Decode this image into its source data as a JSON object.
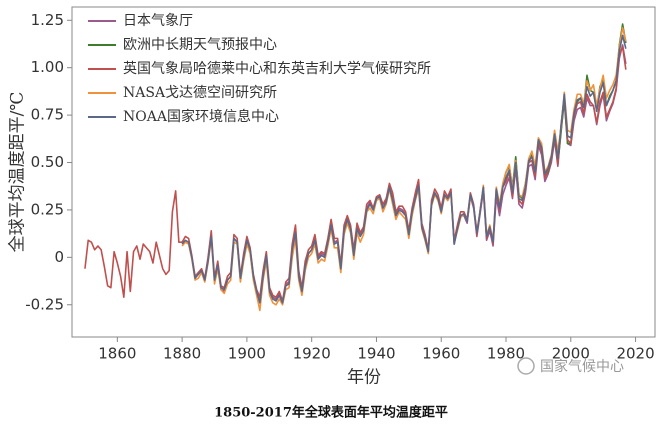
{
  "chart_data": {
    "type": "line",
    "title": "1850-2017年全球表面年平均温度距平",
    "xlabel": "年份",
    "ylabel": "全球平均温度距平/℃",
    "watermark": "国家气候中心",
    "legend": "upper left",
    "grid": false,
    "xlim": [
      1846,
      2026
    ],
    "xticks": [
      1860,
      1880,
      1900,
      1920,
      1940,
      1960,
      1980,
      2000,
      2020
    ],
    "ylim": [
      -0.42,
      1.32
    ],
    "yticks": [
      -0.25,
      0,
      0.25,
      {
        "value": 0.5,
        "label": "0.50"
      },
      0.75,
      {
        "value": 1,
        "label": "1.00"
      },
      1.25
    ],
    "x": [
      1850,
      1851,
      1852,
      1853,
      1854,
      1855,
      1856,
      1857,
      1858,
      1859,
      1860,
      1861,
      1862,
      1863,
      1864,
      1865,
      1866,
      1867,
      1868,
      1869,
      1870,
      1871,
      1872,
      1873,
      1874,
      1875,
      1876,
      1877,
      1878,
      1879,
      1880,
      1881,
      1882,
      1883,
      1884,
      1885,
      1886,
      1887,
      1888,
      1889,
      1890,
      1891,
      1892,
      1893,
      1894,
      1895,
      1896,
      1897,
      1898,
      1899,
      1900,
      1901,
      1902,
      1903,
      1904,
      1905,
      1906,
      1907,
      1908,
      1909,
      1910,
      1911,
      1912,
      1913,
      1914,
      1915,
      1916,
      1917,
      1918,
      1919,
      1920,
      1921,
      1922,
      1923,
      1924,
      1925,
      1926,
      1927,
      1928,
      1929,
      1930,
      1931,
      1932,
      1933,
      1934,
      1935,
      1936,
      1937,
      1938,
      1939,
      1940,
      1941,
      1942,
      1943,
      1944,
      1945,
      1946,
      1947,
      1948,
      1949,
      1950,
      1951,
      1952,
      1953,
      1954,
      1955,
      1956,
      1957,
      1958,
      1959,
      1960,
      1961,
      1962,
      1963,
      1964,
      1965,
      1966,
      1967,
      1968,
      1969,
      1970,
      1971,
      1972,
      1973,
      1974,
      1975,
      1976,
      1977,
      1978,
      1979,
      1980,
      1981,
      1982,
      1983,
      1984,
      1985,
      1986,
      1987,
      1988,
      1989,
      1990,
      1991,
      1992,
      1993,
      1994,
      1995,
      1996,
      1997,
      1998,
      1999,
      2000,
      2001,
      2002,
      2003,
      2004,
      2005,
      2006,
      2007,
      2008,
      2009,
      2010,
      2011,
      2012,
      2013,
      2014,
      2015,
      2016,
      2017
    ],
    "series": [
      {
        "name": "日本气象厅",
        "color": "#9a5a8e",
        "values": [
          null,
          null,
          null,
          null,
          null,
          null,
          null,
          null,
          null,
          null,
          null,
          null,
          null,
          null,
          null,
          null,
          null,
          null,
          null,
          null,
          null,
          null,
          null,
          null,
          null,
          null,
          null,
          null,
          null,
          null,
          null,
          null,
          null,
          null,
          null,
          null,
          null,
          null,
          null,
          null,
          null,
          -0.04,
          -0.17,
          -0.18,
          -0.12,
          -0.1,
          0.1,
          0.08,
          -0.12,
          0.0,
          0.09,
          0.03,
          -0.11,
          -0.19,
          -0.23,
          -0.09,
          0.01,
          -0.18,
          -0.21,
          -0.22,
          -0.19,
          -0.24,
          -0.14,
          -0.13,
          0.05,
          0.15,
          -0.09,
          -0.17,
          -0.04,
          0.02,
          0.04,
          0.1,
          0.0,
          0.02,
          0.01,
          0.09,
          0.18,
          0.08,
          0.09,
          -0.05,
          0.15,
          0.21,
          0.16,
          0.02,
          0.16,
          0.12,
          0.15,
          0.26,
          0.29,
          0.25,
          0.31,
          0.32,
          0.26,
          0.3,
          0.37,
          0.31,
          0.23,
          0.26,
          0.25,
          0.23,
          0.12,
          0.24,
          0.32,
          0.38,
          0.16,
          0.1,
          0.03,
          0.28,
          0.34,
          0.31,
          0.24,
          0.33,
          0.3,
          0.34,
          0.07,
          0.15,
          0.22,
          0.22,
          0.18,
          0.32,
          0.26,
          0.11,
          0.23,
          0.35,
          0.09,
          0.14,
          0.06,
          0.32,
          0.22,
          0.33,
          0.38,
          0.42,
          0.31,
          0.47,
          0.28,
          0.26,
          0.34,
          0.48,
          0.49,
          0.41,
          0.59,
          0.54,
          0.4,
          0.44,
          0.5,
          0.62,
          0.48,
          0.67,
          0.82,
          0.6,
          0.59,
          0.72,
          0.78,
          0.79,
          0.74,
          0.84,
          0.8,
          0.8,
          0.7,
          0.8,
          0.86,
          0.72,
          0.77,
          0.81,
          0.88,
          1.05,
          1.12,
          1.02
        ]
      },
      {
        "name": "欧洲中长期天气预报中心",
        "color": "#3e7d2c",
        "values": [
          null,
          null,
          null,
          null,
          null,
          null,
          null,
          null,
          null,
          null,
          null,
          null,
          null,
          null,
          null,
          null,
          null,
          null,
          null,
          null,
          null,
          null,
          null,
          null,
          null,
          null,
          null,
          null,
          null,
          null,
          null,
          null,
          null,
          null,
          null,
          null,
          null,
          null,
          null,
          null,
          null,
          null,
          null,
          null,
          null,
          null,
          null,
          null,
          null,
          null,
          null,
          null,
          null,
          null,
          null,
          null,
          null,
          null,
          null,
          null,
          null,
          null,
          null,
          null,
          null,
          null,
          null,
          null,
          null,
          null,
          null,
          null,
          null,
          null,
          null,
          null,
          null,
          null,
          null,
          null,
          null,
          null,
          null,
          null,
          null,
          null,
          null,
          null,
          null,
          null,
          null,
          null,
          null,
          null,
          null,
          null,
          null,
          null,
          null,
          null,
          null,
          null,
          null,
          null,
          null,
          null,
          null,
          null,
          null,
          null,
          null,
          null,
          null,
          null,
          null,
          null,
          null,
          null,
          null,
          null,
          null,
          null,
          null,
          null,
          null,
          null,
          null,
          null,
          null,
          0.38,
          0.45,
          0.48,
          0.37,
          0.53,
          0.33,
          0.31,
          0.39,
          0.5,
          0.54,
          0.45,
          0.6,
          0.58,
          0.43,
          0.45,
          0.52,
          0.64,
          0.5,
          0.66,
          0.84,
          0.6,
          0.6,
          0.75,
          0.82,
          0.84,
          0.79,
          0.96,
          0.88,
          0.87,
          0.78,
          0.9,
          0.94,
          0.8,
          0.85,
          0.88,
          0.93,
          1.12,
          1.23,
          1.13
        ]
      },
      {
        "name": "英国气象局哈德莱中心和东英吉利大学气候研究所",
        "color": "#c0504d",
        "values": [
          -0.06,
          0.09,
          0.08,
          0.04,
          0.06,
          0.04,
          -0.05,
          -0.15,
          -0.16,
          0.03,
          -0.03,
          -0.1,
          -0.21,
          0.03,
          -0.18,
          0.03,
          0.06,
          -0.01,
          0.07,
          0.05,
          0.03,
          -0.03,
          0.08,
          0.01,
          -0.06,
          -0.09,
          -0.07,
          0.24,
          0.35,
          0.08,
          0.08,
          0.11,
          0.1,
          0.01,
          -0.1,
          -0.08,
          -0.06,
          -0.11,
          0.0,
          0.14,
          -0.11,
          -0.02,
          -0.15,
          -0.16,
          -0.1,
          -0.08,
          0.12,
          0.1,
          -0.1,
          0.02,
          0.11,
          0.05,
          -0.09,
          -0.17,
          -0.21,
          -0.07,
          0.03,
          -0.16,
          -0.2,
          -0.21,
          -0.18,
          -0.23,
          -0.13,
          -0.11,
          0.07,
          0.17,
          -0.07,
          -0.16,
          -0.02,
          0.04,
          0.06,
          0.12,
          0.01,
          0.03,
          0.02,
          0.1,
          0.2,
          0.1,
          0.1,
          -0.04,
          0.17,
          0.22,
          0.17,
          0.04,
          0.18,
          0.13,
          0.16,
          0.28,
          0.3,
          0.26,
          0.32,
          0.33,
          0.28,
          0.31,
          0.39,
          0.34,
          0.24,
          0.27,
          0.27,
          0.24,
          0.14,
          0.26,
          0.34,
          0.41,
          0.18,
          0.12,
          0.04,
          0.3,
          0.36,
          0.33,
          0.26,
          0.35,
          0.32,
          0.36,
          0.09,
          0.17,
          0.24,
          0.24,
          0.2,
          0.34,
          0.28,
          0.12,
          0.25,
          0.37,
          0.1,
          0.16,
          0.07,
          0.36,
          0.25,
          0.37,
          0.4,
          0.45,
          0.32,
          0.5,
          0.3,
          0.28,
          0.36,
          0.5,
          0.51,
          0.43,
          0.61,
          0.56,
          0.42,
          0.46,
          0.52,
          0.64,
          0.49,
          0.7,
          0.85,
          0.62,
          0.6,
          0.75,
          0.81,
          0.82,
          0.76,
          0.86,
          0.82,
          0.8,
          0.71,
          0.82,
          0.87,
          0.74,
          0.78,
          0.82,
          0.89,
          1.07,
          1.11,
          0.99
        ]
      },
      {
        "name": "NASA戈达德空间研究所",
        "color": "#f0923c",
        "values": [
          null,
          null,
          null,
          null,
          null,
          null,
          null,
          null,
          null,
          null,
          null,
          null,
          null,
          null,
          null,
          null,
          null,
          null,
          null,
          null,
          null,
          null,
          null,
          null,
          null,
          null,
          null,
          null,
          null,
          null,
          0.06,
          0.08,
          0.07,
          -0.01,
          -0.12,
          -0.11,
          -0.08,
          -0.13,
          -0.03,
          0.1,
          -0.14,
          -0.06,
          -0.17,
          -0.19,
          -0.14,
          -0.12,
          0.08,
          0.07,
          -0.13,
          -0.02,
          0.07,
          0.02,
          -0.12,
          -0.2,
          -0.28,
          -0.12,
          -0.02,
          -0.2,
          -0.24,
          -0.25,
          -0.22,
          -0.25,
          -0.17,
          -0.16,
          0.0,
          0.1,
          -0.12,
          -0.2,
          -0.07,
          0.0,
          0.02,
          0.07,
          -0.03,
          -0.01,
          -0.02,
          0.06,
          0.15,
          0.05,
          0.05,
          -0.08,
          0.12,
          0.18,
          0.13,
          -0.01,
          0.13,
          0.08,
          0.12,
          0.24,
          0.26,
          0.23,
          0.3,
          0.31,
          0.24,
          0.28,
          0.36,
          0.28,
          0.2,
          0.24,
          0.22,
          0.2,
          0.1,
          0.22,
          0.3,
          0.36,
          0.15,
          0.09,
          0.02,
          0.27,
          0.33,
          0.3,
          0.23,
          0.32,
          0.3,
          0.33,
          0.08,
          0.14,
          0.21,
          0.23,
          0.19,
          0.32,
          0.27,
          0.14,
          0.24,
          0.38,
          0.12,
          0.17,
          0.09,
          0.37,
          0.28,
          0.39,
          0.45,
          0.49,
          0.36,
          0.51,
          0.33,
          0.32,
          0.39,
          0.52,
          0.56,
          0.48,
          0.63,
          0.6,
          0.45,
          0.48,
          0.54,
          0.67,
          0.56,
          0.68,
          0.87,
          0.67,
          0.66,
          0.78,
          0.86,
          0.86,
          0.81,
          0.93,
          0.88,
          0.91,
          0.8,
          0.89,
          0.96,
          0.84,
          0.88,
          0.91,
          0.96,
          1.11,
          1.21,
          1.14
        ]
      },
      {
        "name": "NOAA国家环境信息中心",
        "color": "#5b6888",
        "values": [
          null,
          null,
          null,
          null,
          null,
          null,
          null,
          null,
          null,
          null,
          null,
          null,
          null,
          null,
          null,
          null,
          null,
          null,
          null,
          null,
          null,
          null,
          null,
          null,
          null,
          null,
          null,
          null,
          null,
          null,
          0.07,
          0.09,
          0.08,
          0.0,
          -0.11,
          -0.09,
          -0.07,
          -0.12,
          -0.02,
          0.11,
          -0.12,
          -0.04,
          -0.16,
          -0.17,
          -0.12,
          -0.1,
          0.1,
          0.08,
          -0.11,
          0.0,
          0.09,
          0.04,
          -0.1,
          -0.18,
          -0.24,
          -0.1,
          0.01,
          -0.18,
          -0.22,
          -0.23,
          -0.2,
          -0.24,
          -0.15,
          -0.14,
          0.04,
          0.13,
          -0.1,
          -0.18,
          -0.05,
          0.02,
          0.04,
          0.09,
          -0.01,
          0.01,
          0.0,
          0.08,
          0.17,
          0.07,
          0.08,
          -0.06,
          0.14,
          0.2,
          0.15,
          0.01,
          0.15,
          0.11,
          0.14,
          0.25,
          0.28,
          0.25,
          0.31,
          0.32,
          0.26,
          0.29,
          0.37,
          0.3,
          0.22,
          0.25,
          0.24,
          0.22,
          0.12,
          0.24,
          0.31,
          0.38,
          0.16,
          0.1,
          0.03,
          0.28,
          0.34,
          0.31,
          0.24,
          0.33,
          0.31,
          0.34,
          0.07,
          0.15,
          0.22,
          0.23,
          0.19,
          0.33,
          0.27,
          0.13,
          0.24,
          0.37,
          0.11,
          0.16,
          0.08,
          0.36,
          0.26,
          0.37,
          0.42,
          0.46,
          0.34,
          0.5,
          0.31,
          0.3,
          0.37,
          0.51,
          0.53,
          0.45,
          0.62,
          0.58,
          0.44,
          0.47,
          0.53,
          0.65,
          0.52,
          0.69,
          0.86,
          0.64,
          0.63,
          0.76,
          0.83,
          0.84,
          0.79,
          0.9,
          0.85,
          0.87,
          0.77,
          0.87,
          0.92,
          0.8,
          0.84,
          0.88,
          0.93,
          1.09,
          1.17,
          1.1
        ]
      }
    ]
  }
}
